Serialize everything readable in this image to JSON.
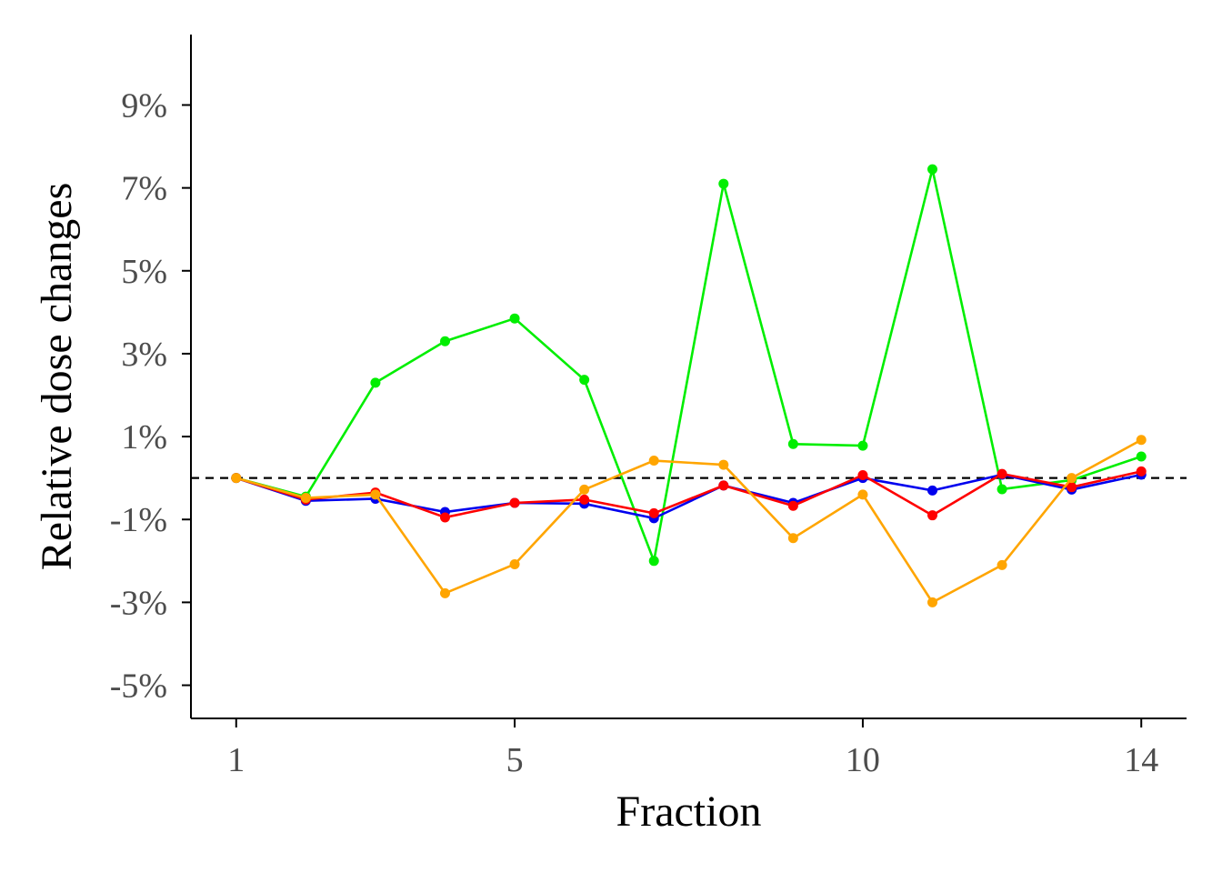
{
  "chart_data": {
    "type": "line",
    "title": "",
    "xlabel": "Fraction",
    "ylabel": "Relative dose changes",
    "x": [
      1,
      2,
      3,
      4,
      5,
      6,
      7,
      8,
      9,
      10,
      11,
      12,
      13,
      14
    ],
    "xlim": [
      0.35,
      14.65
    ],
    "ylim": [
      -5.8,
      10.7
    ],
    "x_ticks": [
      1,
      5,
      10,
      14
    ],
    "x_tick_labels": [
      "1",
      "5",
      "10",
      "14"
    ],
    "y_ticks": [
      -5,
      -3,
      -1,
      1,
      3,
      5,
      7,
      9
    ],
    "y_tick_labels": [
      "-5%",
      "-3%",
      "-1%",
      "1%",
      "3%",
      "5%",
      "7%",
      "9%"
    ],
    "reference_line": {
      "y": 0,
      "style": "dashed",
      "color": "#000000"
    },
    "grid": false,
    "legend": "none",
    "series": [
      {
        "color": "#00ee00",
        "values": [
          0.0,
          -0.45,
          2.3,
          3.3,
          3.85,
          2.37,
          -2.0,
          7.1,
          0.82,
          0.78,
          7.45,
          -0.27,
          -0.05,
          0.52
        ]
      },
      {
        "color": "#0000ee",
        "values": [
          0.0,
          -0.55,
          -0.5,
          -0.82,
          -0.6,
          -0.62,
          -0.97,
          -0.18,
          -0.6,
          0.0,
          -0.3,
          0.08,
          -0.28,
          0.08
        ]
      },
      {
        "color": "#ff0000",
        "values": [
          0.0,
          -0.52,
          -0.35,
          -0.95,
          -0.6,
          -0.52,
          -0.85,
          -0.18,
          -0.67,
          0.07,
          -0.9,
          0.1,
          -0.22,
          0.16
        ]
      },
      {
        "color": "#ffa500",
        "values": [
          0.0,
          -0.48,
          -0.4,
          -2.78,
          -2.08,
          -0.28,
          0.42,
          0.32,
          -1.45,
          -0.4,
          -3.0,
          -2.1,
          0.0,
          0.92
        ]
      }
    ]
  }
}
